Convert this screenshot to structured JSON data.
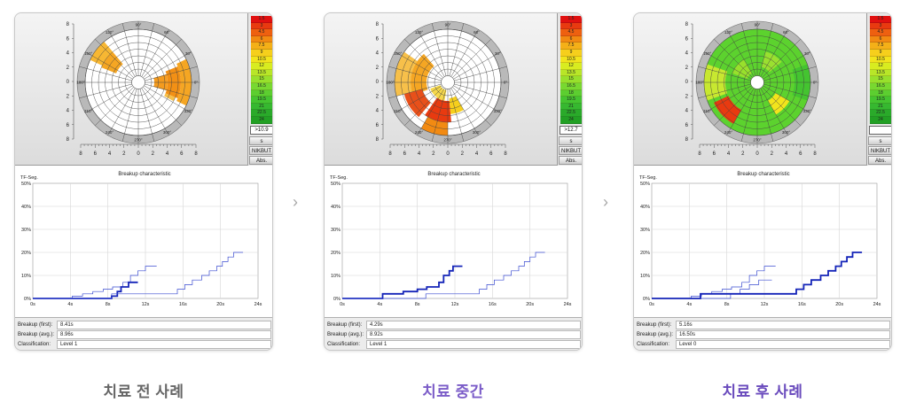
{
  "colors": {
    "accent": "#6a4bbd",
    "caption_gray": "#666666",
    "trace": "#1c2fc0"
  },
  "polar": {
    "angle_labels": [
      "0°",
      "30°",
      "60°",
      "90°",
      "120°",
      "150°",
      "180°",
      "210°",
      "240°",
      "270°",
      "300°",
      "330°"
    ],
    "x_ticks": [
      "8",
      "6",
      "4",
      "2",
      "0",
      "2",
      "4",
      "6",
      "8"
    ],
    "y_ticks": [
      "8",
      "6",
      "4",
      "2",
      "0",
      "2",
      "4",
      "6",
      "8"
    ]
  },
  "scale": {
    "values": [
      "1.5",
      "3",
      "4.5",
      "6",
      "7.5",
      "9",
      "10.5",
      "12",
      "13.5",
      "15",
      "16.5",
      "18",
      "19.5",
      "21",
      "22.5",
      "24"
    ],
    "colors": [
      "#e01010",
      "#e83a10",
      "#ee6010",
      "#f28a12",
      "#f4b018",
      "#f6cf1c",
      "#f2e41c",
      "#d8ec20",
      "#b8e628",
      "#98e02c",
      "#78d830",
      "#5cce30",
      "#44c430",
      "#36b830",
      "#2aaa2a",
      "#22a024"
    ],
    "unit_label": "s",
    "nikbut_label": "NIKBUT",
    "abs_label": "Abs."
  },
  "graph": {
    "title": "Breakup characteristic",
    "ylabel": "TF-Seg.",
    "x_ticks": [
      "0s",
      "4s",
      "8s",
      "12s",
      "16s",
      "20s",
      "24s"
    ],
    "y_ticks": [
      "0%",
      "10%",
      "20%",
      "30%",
      "40%",
      "50%"
    ]
  },
  "info_labels": {
    "first": "Breakup (first):",
    "avg": "Breakup (avg.):",
    "classification": "Classification:"
  },
  "panels": [
    {
      "caption": "치료 전 사례",
      "scale_box": ">10.9",
      "breakup_first": "8.41s",
      "breakup_avg": "8.96s",
      "classification": "Level 1",
      "cells": [
        {
          "r0": 0.45,
          "r1": 0.75,
          "a0": 130,
          "a1": 158,
          "c": "#f5a623"
        },
        {
          "r0": 0.75,
          "r1": 1.0,
          "a0": 130,
          "a1": 155,
          "c": "#f7b733"
        },
        {
          "r0": 0.3,
          "r1": 0.55,
          "a0": -16,
          "a1": 16,
          "c": "#f59b1e"
        },
        {
          "r0": 0.55,
          "r1": 0.8,
          "a0": -22,
          "a1": 22,
          "c": "#f39015"
        },
        {
          "r0": 0.8,
          "r1": 1.0,
          "a0": -26,
          "a1": 26,
          "c": "#f5a623"
        },
        {
          "r0": 0.55,
          "r1": 0.75,
          "a0": -28,
          "a1": -22,
          "c": "#f7c04a"
        }
      ],
      "series": [
        {
          "bold": false,
          "points": [
            [
              0,
              0
            ],
            [
              4.2,
              0
            ],
            [
              4.2,
              1
            ],
            [
              5.3,
              1
            ],
            [
              5.3,
              2
            ],
            [
              6.4,
              2
            ],
            [
              6.4,
              3
            ],
            [
              7.5,
              3
            ],
            [
              7.5,
              4
            ],
            [
              8.5,
              4
            ],
            [
              8.5,
              5
            ],
            [
              9.6,
              5
            ],
            [
              9.6,
              7
            ],
            [
              10.4,
              7
            ],
            [
              10.4,
              10
            ],
            [
              11.2,
              10
            ],
            [
              11.2,
              12
            ],
            [
              12,
              12
            ],
            [
              12,
              14
            ],
            [
              13.2,
              14
            ]
          ]
        },
        {
          "bold": true,
          "points": [
            [
              0,
              0
            ],
            [
              8.4,
              0
            ],
            [
              8.4,
              1
            ],
            [
              9,
              1
            ],
            [
              9,
              3
            ],
            [
              9.4,
              3
            ],
            [
              9.4,
              5
            ],
            [
              10.2,
              5
            ],
            [
              10.2,
              7
            ],
            [
              11.2,
              7
            ]
          ]
        },
        {
          "bold": false,
          "points": [
            [
              0,
              0
            ],
            [
              8.4,
              0
            ],
            [
              8.4,
              2
            ],
            [
              15.4,
              2
            ],
            [
              15.4,
              4
            ],
            [
              16.2,
              4
            ],
            [
              16.2,
              6
            ],
            [
              17,
              6
            ],
            [
              17,
              8
            ],
            [
              18,
              8
            ],
            [
              18,
              10
            ],
            [
              18.8,
              10
            ],
            [
              18.8,
              12
            ],
            [
              19.6,
              12
            ],
            [
              19.6,
              14
            ],
            [
              20.2,
              14
            ],
            [
              20.2,
              16
            ],
            [
              20.8,
              16
            ],
            [
              20.8,
              18
            ],
            [
              21.4,
              18
            ],
            [
              21.4,
              20
            ],
            [
              22.4,
              20
            ]
          ]
        }
      ]
    },
    {
      "caption": "치료 중간",
      "scale_box": ">12.7",
      "breakup_first": "4.29s",
      "breakup_avg": "8.92s",
      "classification": "Level 1",
      "cells": [
        {
          "r0": 0.4,
          "r1": 0.7,
          "a0": 130,
          "a1": 200,
          "c": "#f5a623"
        },
        {
          "r0": 0.7,
          "r1": 1.0,
          "a0": 145,
          "a1": 195,
          "c": "#f7c04a"
        },
        {
          "r0": 0.5,
          "r1": 0.85,
          "a0": 195,
          "a1": 230,
          "c": "#e8501a"
        },
        {
          "r0": 0.35,
          "r1": 0.75,
          "a0": 235,
          "a1": 275,
          "c": "#e83a10"
        },
        {
          "r0": 0.75,
          "r1": 1.0,
          "a0": 240,
          "a1": 270,
          "c": "#f28a12"
        },
        {
          "r0": 0.3,
          "r1": 0.6,
          "a0": 275,
          "a1": 300,
          "c": "#f6cf1c"
        },
        {
          "r0": 0.15,
          "r1": 0.35,
          "a0": 200,
          "a1": 260,
          "c": "#f6d84a"
        }
      ],
      "series": [
        {
          "bold": true,
          "points": [
            [
              0,
              0
            ],
            [
              4.3,
              0
            ],
            [
              4.3,
              2
            ],
            [
              6.5,
              2
            ],
            [
              6.5,
              3
            ],
            [
              8,
              3
            ],
            [
              8,
              4
            ],
            [
              9,
              4
            ],
            [
              9,
              5
            ],
            [
              10.3,
              5
            ],
            [
              10.3,
              7
            ],
            [
              10.8,
              7
            ],
            [
              10.8,
              10
            ],
            [
              11.4,
              10
            ],
            [
              11.4,
              12
            ],
            [
              11.8,
              12
            ],
            [
              11.8,
              14
            ],
            [
              12.8,
              14
            ]
          ]
        },
        {
          "bold": false,
          "points": [
            [
              0,
              0
            ],
            [
              8.9,
              0
            ],
            [
              8.9,
              2
            ],
            [
              14.6,
              2
            ],
            [
              14.6,
              4
            ],
            [
              15.4,
              4
            ],
            [
              15.4,
              6
            ],
            [
              16.2,
              6
            ],
            [
              16.2,
              8
            ],
            [
              17.2,
              8
            ],
            [
              17.2,
              10
            ],
            [
              18,
              10
            ],
            [
              18,
              12
            ],
            [
              18.8,
              12
            ],
            [
              18.8,
              14
            ],
            [
              19.4,
              14
            ],
            [
              19.4,
              16
            ],
            [
              20,
              16
            ],
            [
              20,
              18
            ],
            [
              20.6,
              18
            ],
            [
              20.6,
              20
            ],
            [
              21.6,
              20
            ]
          ]
        }
      ]
    },
    {
      "caption": "치료 후 사례",
      "scale_box": "",
      "breakup_first": "5.16s",
      "breakup_avg": "16.50s",
      "classification": "Level 0",
      "cells": [
        {
          "r0": 0.0,
          "r1": 1.0,
          "a0": 0,
          "a1": 360,
          "c": "#5cd22e"
        },
        {
          "r0": 0.3,
          "r1": 0.6,
          "a0": 40,
          "a1": 75,
          "c": "#9ae030"
        },
        {
          "r0": 0.6,
          "r1": 1.0,
          "a0": 160,
          "a1": 200,
          "c": "#c8e830"
        },
        {
          "r0": 0.6,
          "r1": 0.9,
          "a0": 205,
          "a1": 240,
          "c": "#e83a10"
        },
        {
          "r0": 0.4,
          "r1": 0.7,
          "a0": 300,
          "a1": 330,
          "c": "#f2e41c"
        },
        {
          "r0": 0.2,
          "r1": 0.5,
          "a0": 120,
          "a1": 160,
          "c": "#98e02c"
        },
        {
          "r0": 0.7,
          "r1": 1.0,
          "a0": -20,
          "a1": 20,
          "c": "#44c430"
        }
      ],
      "series": [
        {
          "bold": false,
          "points": [
            [
              0,
              0
            ],
            [
              4.2,
              0
            ],
            [
              4.2,
              1
            ],
            [
              5.3,
              1
            ],
            [
              5.3,
              2
            ],
            [
              6.4,
              2
            ],
            [
              6.4,
              3
            ],
            [
              7.5,
              3
            ],
            [
              7.5,
              4
            ],
            [
              8.5,
              4
            ],
            [
              8.5,
              5
            ],
            [
              9.6,
              5
            ],
            [
              9.6,
              7
            ],
            [
              10.4,
              7
            ],
            [
              10.4,
              10
            ],
            [
              11.2,
              10
            ],
            [
              11.2,
              12
            ],
            [
              12,
              12
            ],
            [
              12,
              14
            ],
            [
              13.2,
              14
            ]
          ]
        },
        {
          "bold": false,
          "points": [
            [
              0,
              0
            ],
            [
              8.4,
              0
            ],
            [
              8.4,
              2
            ],
            [
              9.4,
              2
            ],
            [
              9.4,
              4
            ],
            [
              10.4,
              4
            ],
            [
              10.4,
              6
            ],
            [
              11.4,
              6
            ],
            [
              11.4,
              8
            ],
            [
              12.8,
              8
            ]
          ]
        },
        {
          "bold": true,
          "points": [
            [
              0,
              0
            ],
            [
              5.2,
              0
            ],
            [
              5.2,
              2
            ],
            [
              15.4,
              2
            ],
            [
              15.4,
              4
            ],
            [
              16.2,
              4
            ],
            [
              16.2,
              6
            ],
            [
              17,
              6
            ],
            [
              17,
              8
            ],
            [
              18,
              8
            ],
            [
              18,
              10
            ],
            [
              18.8,
              10
            ],
            [
              18.8,
              12
            ],
            [
              19.6,
              12
            ],
            [
              19.6,
              14
            ],
            [
              20.2,
              14
            ],
            [
              20.2,
              16
            ],
            [
              20.8,
              16
            ],
            [
              20.8,
              18
            ],
            [
              21.4,
              18
            ],
            [
              21.4,
              20
            ],
            [
              22.4,
              20
            ]
          ]
        }
      ]
    }
  ]
}
